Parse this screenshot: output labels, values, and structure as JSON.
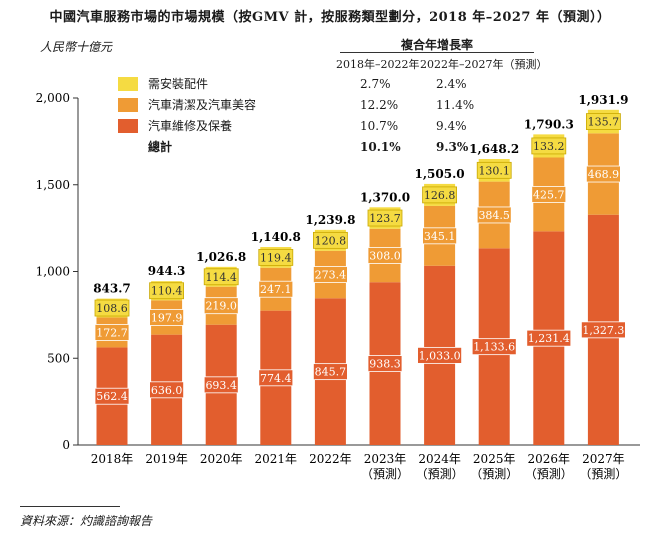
{
  "title": "中國汽車服務市場的市場規模（按GMV 計，按服務類型劃分，2018 年–2027 年（預測））",
  "unit_label": "人民幣十億元",
  "source": "資料來源：灼識諮詢報告",
  "cagr": {
    "header": "複合年增長率",
    "period1": "2018年–2022年",
    "period2": "2022年–2027年（預測）"
  },
  "legend": [
    {
      "name": "需安裝配件",
      "color": "#F5DB42",
      "cagr1": "2.7%",
      "cagr2": "2.4%"
    },
    {
      "name": "汽車清潔及汽車美容",
      "color": "#EF9B35",
      "cagr1": "12.2%",
      "cagr2": "11.4%"
    },
    {
      "name": "汽車維修及保養",
      "color": "#E25E2E",
      "cagr1": "10.7%",
      "cagr2": "9.4%"
    },
    {
      "name": "總計",
      "color": "",
      "cagr1": "10.1%",
      "cagr2": "9.3%"
    }
  ],
  "chart_data": {
    "type": "bar",
    "stacked": true,
    "title": "中國汽車服務市場的市場規模（按GMV 計，按服務類型劃分，2018 年–2027 年（預測））",
    "ylabel": "人民幣十億元",
    "ylim": [
      0,
      2000
    ],
    "yticks": [
      "0",
      "500",
      "1,000",
      "1,500",
      "2,000"
    ],
    "categories": [
      "2018年",
      "2019年",
      "2020年",
      "2021年",
      "2022年",
      "2023年",
      "2024年",
      "2025年",
      "2026年",
      "2027年"
    ],
    "category_notes": [
      "",
      "",
      "",
      "",
      "",
      "（預測）",
      "（預測）",
      "（預測）",
      "（預測）",
      "（預測）"
    ],
    "series": [
      {
        "name": "汽車維修及保養",
        "color": "#E25E2E",
        "text_color": "#ffffff",
        "values": [
          562.4,
          636.0,
          693.4,
          774.4,
          845.7,
          938.3,
          1033.0,
          1133.6,
          1231.4,
          1327.3
        ],
        "labels": [
          "562.4",
          "636.0",
          "693.4",
          "774.4",
          "845.7",
          "938.3",
          "1,033.0",
          "1,133.6",
          "1,231.4",
          "1,327.3"
        ]
      },
      {
        "name": "汽車清潔及汽車美容",
        "color": "#EF9B35",
        "text_color": "#ffffff",
        "values": [
          172.7,
          197.9,
          219.0,
          247.1,
          273.4,
          308.0,
          345.1,
          384.5,
          425.7,
          468.9
        ],
        "labels": [
          "172.7",
          "197.9",
          "219.0",
          "247.1",
          "273.4",
          "308.0",
          "345.1",
          "384.5",
          "425.7",
          "468.9"
        ]
      },
      {
        "name": "需安裝配件",
        "color": "#F5DB42",
        "text_color": "#333333",
        "values": [
          108.6,
          110.4,
          114.4,
          119.4,
          120.8,
          123.7,
          126.8,
          130.1,
          133.2,
          135.7
        ],
        "labels": [
          "108.6",
          "110.4",
          "114.4",
          "119.4",
          "120.8",
          "123.7",
          "126.8",
          "130.1",
          "133.2",
          "135.7"
        ]
      }
    ],
    "totals": [
      843.7,
      944.3,
      1026.8,
      1140.8,
      1239.8,
      1370.0,
      1505.0,
      1648.2,
      1790.3,
      1931.9
    ],
    "total_labels": [
      "843.7",
      "944.3",
      "1,026.8",
      "1,140.8",
      "1,239.8",
      "1,370.0",
      "1,505.0",
      "1,648.2",
      "1,790.3",
      "1,931.9"
    ]
  }
}
